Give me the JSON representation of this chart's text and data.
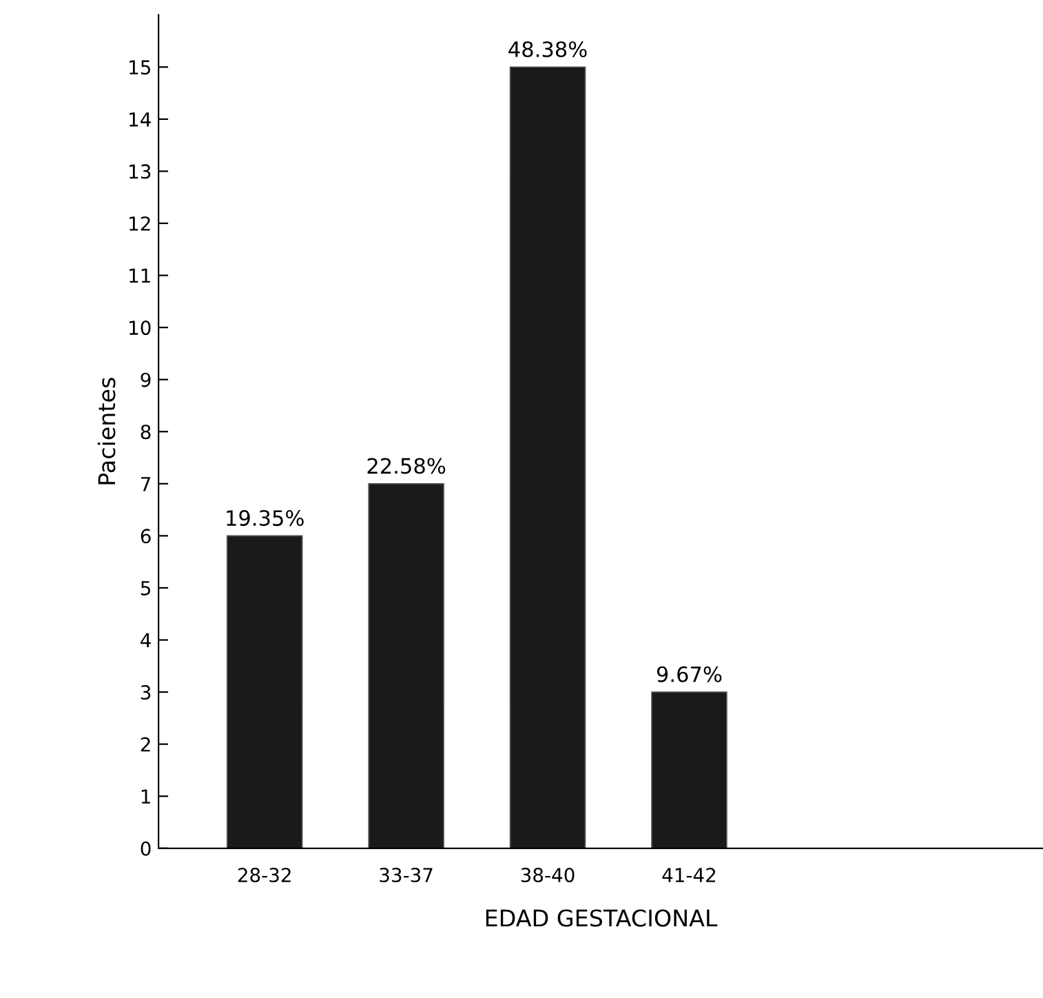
{
  "chart_data": {
    "type": "bar",
    "xlabel": "EDAD GESTACIONAL",
    "ylabel": "Pacientes",
    "categories": [
      "28-32",
      "33-37",
      "38-40",
      "41-42"
    ],
    "values": [
      6,
      7,
      15,
      3
    ],
    "annotations": [
      {
        "text": "19.35%",
        "x": "28-32",
        "y": 6
      },
      {
        "text": "22.58%",
        "x": "33-37",
        "y": 7
      },
      {
        "text": "48.38%",
        "x": "38-40",
        "y": 15
      },
      {
        "text": "9.67%",
        "x": "41-42",
        "y": 3
      }
    ],
    "color": "#1a1a1a",
    "ylim": [
      0,
      16
    ],
    "yticks": [
      0,
      1,
      2,
      3,
      4,
      5,
      6,
      7,
      8,
      9,
      10,
      11,
      12,
      13,
      14,
      15
    ],
    "grid": false,
    "legend": false
  }
}
